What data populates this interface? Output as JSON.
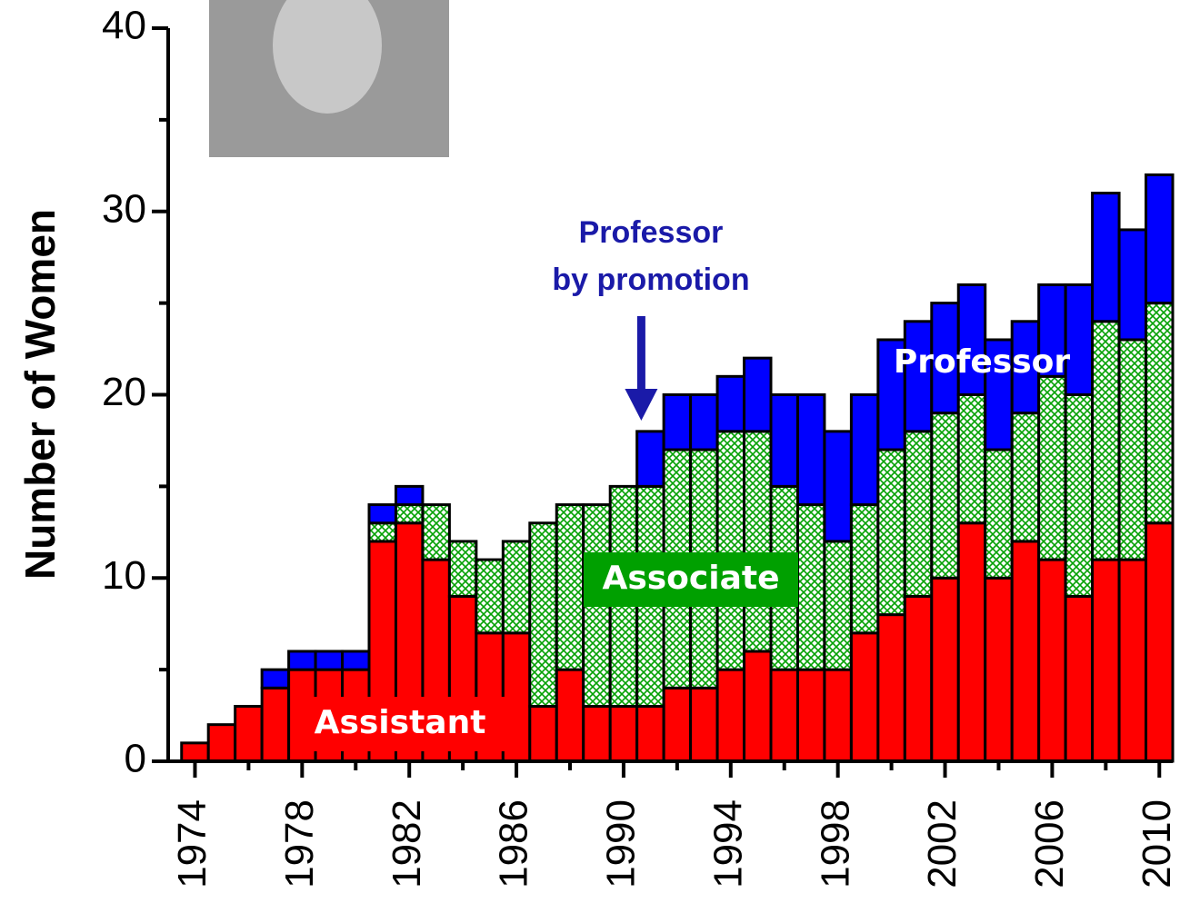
{
  "chart_data": {
    "type": "bar",
    "stacked": true,
    "y_label": "Number of Women",
    "x": [
      1974,
      1975,
      1976,
      1977,
      1978,
      1979,
      1980,
      1981,
      1982,
      1983,
      1984,
      1985,
      1986,
      1987,
      1988,
      1989,
      1990,
      1991,
      1992,
      1993,
      1994,
      1995,
      1996,
      1997,
      1998,
      1999,
      2000,
      2001,
      2002,
      2003,
      2004,
      2005,
      2006,
      2007,
      2008,
      2009,
      2010
    ],
    "series": [
      {
        "name": "Assistant",
        "color": "#ff0000",
        "values": [
          1,
          2,
          3,
          4,
          5,
          5,
          5,
          12,
          13,
          11,
          9,
          7,
          7,
          3,
          5,
          3,
          3,
          3,
          4,
          4,
          5,
          6,
          5,
          5,
          5,
          7,
          8,
          9,
          10,
          13,
          10,
          12,
          11,
          9,
          11,
          11,
          13
        ]
      },
      {
        "name": "Associate",
        "color": "#00a000",
        "values": [
          0,
          0,
          0,
          0,
          0,
          0,
          0,
          1,
          1,
          3,
          3,
          4,
          5,
          10,
          9,
          11,
          12,
          12,
          13,
          13,
          13,
          12,
          10,
          9,
          7,
          7,
          9,
          9,
          9,
          7,
          7,
          7,
          10,
          11,
          13,
          12,
          12
        ]
      },
      {
        "name": "Professor",
        "color": "#0000ff",
        "values": [
          0,
          0,
          0,
          1,
          1,
          1,
          1,
          1,
          1,
          0,
          0,
          0,
          0,
          0,
          0,
          0,
          0,
          3,
          3,
          3,
          3,
          4,
          5,
          6,
          6,
          6,
          6,
          6,
          6,
          6,
          6,
          5,
          5,
          6,
          7,
          6,
          7
        ]
      }
    ],
    "xlim": [
      1973,
      2010.5
    ],
    "xticks": [
      1974,
      1978,
      1982,
      1986,
      1990,
      1994,
      1998,
      2002,
      2006,
      2010
    ],
    "ylim": [
      0,
      40
    ],
    "yticks": [
      0,
      10,
      20,
      30,
      40
    ],
    "annotation": {
      "lines": [
        "Professor",
        "by promotion"
      ],
      "x": 1991,
      "color": "#1a1aa8"
    }
  }
}
